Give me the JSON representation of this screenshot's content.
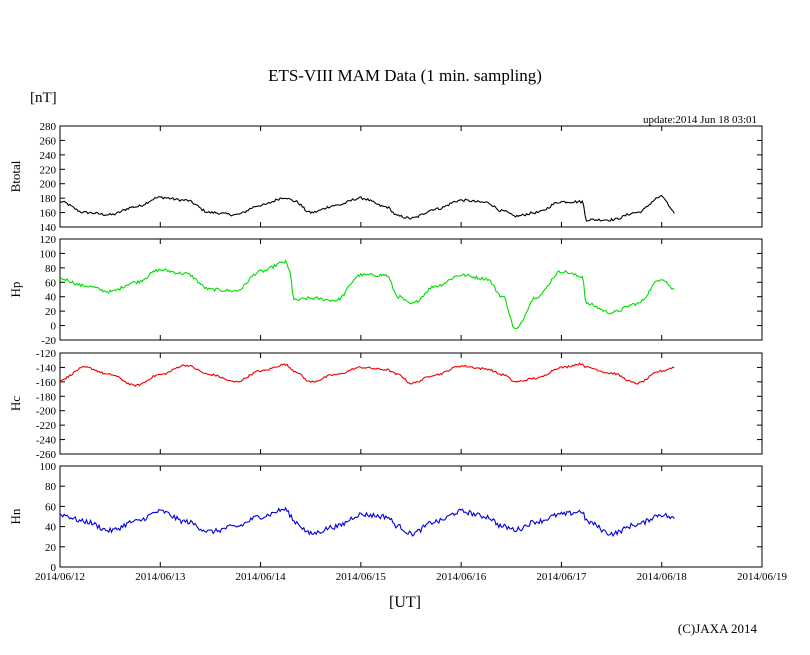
{
  "header": {
    "title": "ETS-VIII MAM Data (1 min. sampling)",
    "unit": "[nT]",
    "update": "update:2014 Jun 18 03:01"
  },
  "footer": {
    "xunit": "[UT]",
    "copyright": "(C)JAXA 2014"
  },
  "chart_data": {
    "type": "line",
    "x_ticks": [
      "2014/06/12",
      "2014/06/13",
      "2014/06/14",
      "2014/06/15",
      "2014/06/16",
      "2014/06/17",
      "2014/06/18",
      "2014/06/19"
    ],
    "xlim": [
      "2014/06/12",
      "2014/06/19"
    ],
    "grid": false,
    "panels": [
      {
        "ylabel": "Btotal",
        "ylim": [
          140,
          280
        ],
        "yticks": [
          "280",
          "260",
          "240",
          "220",
          "200",
          "180",
          "160",
          "140"
        ],
        "color": "#000000",
        "noise": 1.8,
        "x": [
          "2014/06/12 00:00",
          "2014/06/12 06:00",
          "2014/06/12 12:00",
          "2014/06/12 18:00",
          "2014/06/13 00:00",
          "2014/06/13 06:00",
          "2014/06/13 12:00",
          "2014/06/13 18:00",
          "2014/06/14 00:00",
          "2014/06/14 06:00",
          "2014/06/14 07:00",
          "2014/06/14 08:00",
          "2014/06/14 12:00",
          "2014/06/14 18:00",
          "2014/06/15 00:00",
          "2014/06/15 06:00",
          "2014/06/15 09:00",
          "2014/06/15 12:00",
          "2014/06/15 18:00",
          "2014/06/16 00:00",
          "2014/06/16 06:00",
          "2014/06/16 10:00",
          "2014/06/16 13:00",
          "2014/06/16 18:00",
          "2014/06/17 00:00",
          "2014/06/17 05:00",
          "2014/06/17 06:00",
          "2014/06/17 12:00",
          "2014/06/17 18:00",
          "2014/06/18 00:00",
          "2014/06/18 03:00"
        ],
        "y": [
          175,
          160,
          157,
          168,
          181,
          177,
          160,
          157,
          170,
          181,
          178,
          176,
          160,
          170,
          180,
          168,
          155,
          152,
          165,
          177,
          174,
          162,
          155,
          160,
          175,
          175,
          150,
          150,
          160,
          182,
          160
        ]
      },
      {
        "ylabel": "Hp",
        "ylim": [
          -20,
          120
        ],
        "yticks": [
          "120",
          "100",
          "80",
          "60",
          "40",
          "20",
          "0",
          "-20"
        ],
        "color": "#00dd00",
        "noise": 2.2,
        "x": [
          "2014/06/12 00:00",
          "2014/06/12 06:00",
          "2014/06/12 12:00",
          "2014/06/12 18:00",
          "2014/06/13 00:00",
          "2014/06/13 06:00",
          "2014/06/13 12:00",
          "2014/06/13 18:00",
          "2014/06/14 00:00",
          "2014/06/14 06:00",
          "2014/06/14 07:00",
          "2014/06/14 08:00",
          "2014/06/14 12:00",
          "2014/06/14 18:00",
          "2014/06/15 00:00",
          "2014/06/15 06:00",
          "2014/06/15 09:00",
          "2014/06/15 12:00",
          "2014/06/15 18:00",
          "2014/06/16 00:00",
          "2014/06/16 06:00",
          "2014/06/16 10:00",
          "2014/06/16 13:00",
          "2014/06/16 18:00",
          "2014/06/17 00:00",
          "2014/06/17 05:00",
          "2014/06/17 06:00",
          "2014/06/17 12:00",
          "2014/06/17 18:00",
          "2014/06/18 00:00",
          "2014/06/18 03:00"
        ],
        "y": [
          65,
          55,
          47,
          60,
          77,
          72,
          50,
          48,
          75,
          88,
          75,
          35,
          38,
          35,
          70,
          70,
          40,
          30,
          55,
          70,
          65,
          40,
          -5,
          40,
          75,
          68,
          30,
          18,
          30,
          65,
          50
        ]
      },
      {
        "ylabel": "Hc",
        "ylim": [
          -260,
          -120
        ],
        "yticks": [
          "-120",
          "-140",
          "-160",
          "-180",
          "-200",
          "-220",
          "-240",
          "-260"
        ],
        "color": "#ee0000",
        "noise": 1.4,
        "x": [
          "2014/06/12 00:00",
          "2014/06/12 06:00",
          "2014/06/12 12:00",
          "2014/06/12 18:00",
          "2014/06/13 00:00",
          "2014/06/13 06:00",
          "2014/06/13 12:00",
          "2014/06/13 18:00",
          "2014/06/14 00:00",
          "2014/06/14 06:00",
          "2014/06/14 07:00",
          "2014/06/14 08:00",
          "2014/06/14 12:00",
          "2014/06/14 18:00",
          "2014/06/15 00:00",
          "2014/06/15 06:00",
          "2014/06/15 09:00",
          "2014/06/15 12:00",
          "2014/06/15 18:00",
          "2014/06/16 00:00",
          "2014/06/16 06:00",
          "2014/06/16 10:00",
          "2014/06/16 13:00",
          "2014/06/16 18:00",
          "2014/06/17 00:00",
          "2014/06/17 05:00",
          "2014/06/17 06:00",
          "2014/06/17 12:00",
          "2014/06/17 18:00",
          "2014/06/18 00:00",
          "2014/06/18 03:00"
        ],
        "y": [
          -157,
          -140,
          -150,
          -165,
          -150,
          -137,
          -150,
          -160,
          -145,
          -136,
          -140,
          -145,
          -160,
          -150,
          -140,
          -143,
          -150,
          -162,
          -150,
          -138,
          -142,
          -150,
          -160,
          -155,
          -140,
          -135,
          -140,
          -148,
          -162,
          -145,
          -140
        ]
      },
      {
        "ylabel": "Hn",
        "ylim": [
          0,
          100
        ],
        "yticks": [
          "100",
          "80",
          "60",
          "40",
          "20",
          "0"
        ],
        "color": "#0000dd",
        "noise": 2.5,
        "x": [
          "2014/06/12 00:00",
          "2014/06/12 06:00",
          "2014/06/12 12:00",
          "2014/06/12 18:00",
          "2014/06/13 00:00",
          "2014/06/13 06:00",
          "2014/06/13 12:00",
          "2014/06/13 18:00",
          "2014/06/14 00:00",
          "2014/06/14 06:00",
          "2014/06/14 07:00",
          "2014/06/14 08:00",
          "2014/06/14 12:00",
          "2014/06/14 18:00",
          "2014/06/15 00:00",
          "2014/06/15 06:00",
          "2014/06/15 09:00",
          "2014/06/15 12:00",
          "2014/06/15 18:00",
          "2014/06/16 00:00",
          "2014/06/16 06:00",
          "2014/06/16 10:00",
          "2014/06/16 13:00",
          "2014/06/16 18:00",
          "2014/06/17 00:00",
          "2014/06/17 05:00",
          "2014/06/17 06:00",
          "2014/06/17 12:00",
          "2014/06/17 18:00",
          "2014/06/18 00:00",
          "2014/06/18 03:00"
        ],
        "y": [
          52,
          45,
          36,
          45,
          55,
          45,
          35,
          40,
          50,
          57,
          52,
          45,
          33,
          40,
          52,
          50,
          40,
          33,
          45,
          55,
          50,
          40,
          37,
          45,
          52,
          55,
          45,
          33,
          42,
          52,
          48
        ]
      }
    ]
  }
}
